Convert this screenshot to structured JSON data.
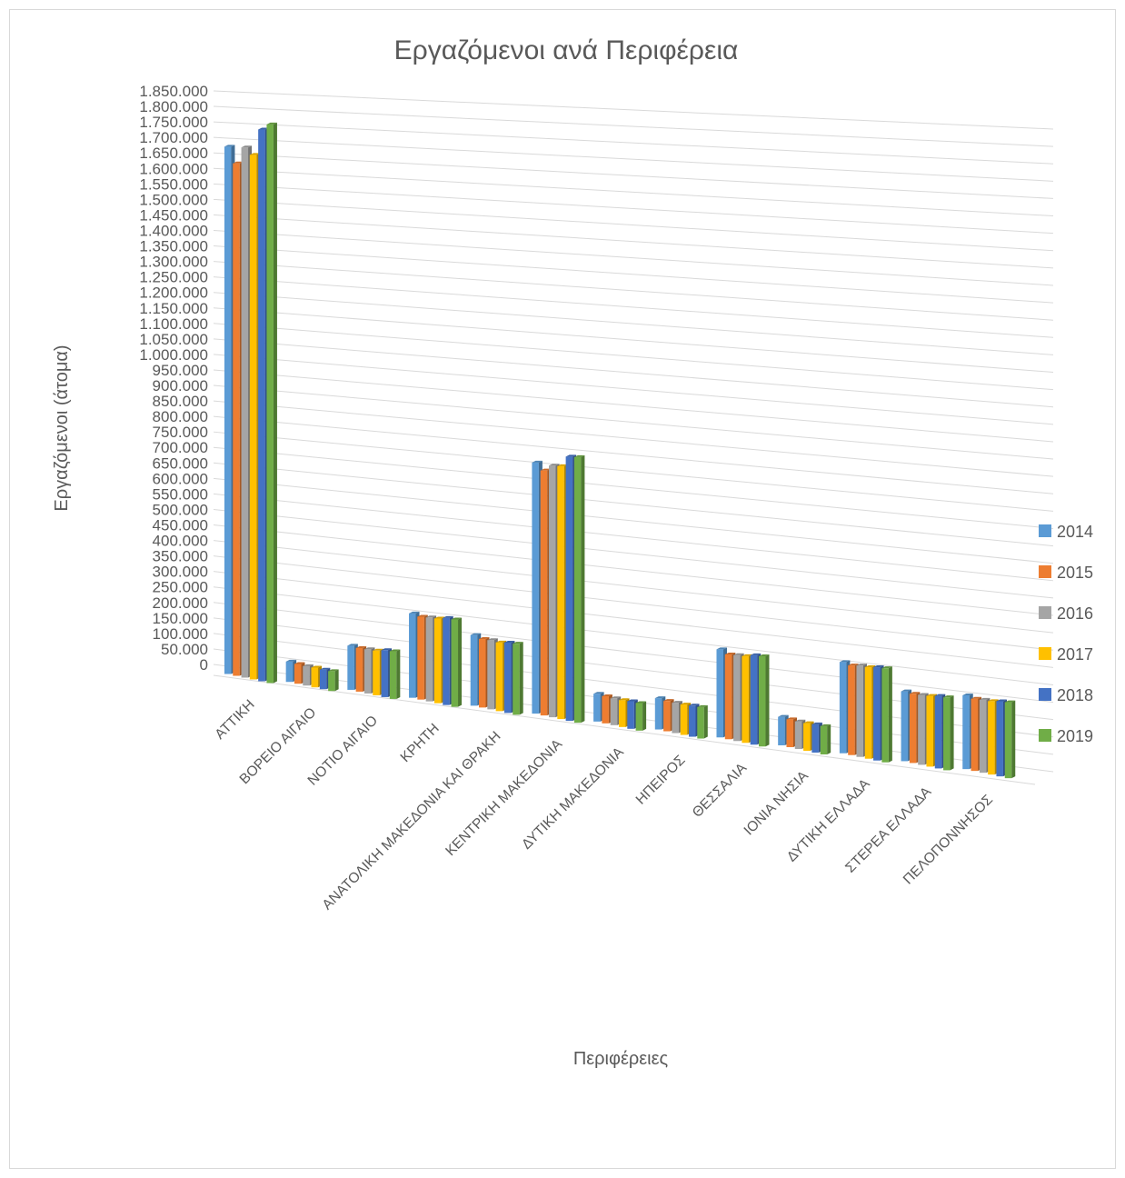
{
  "chart_data": {
    "type": "bar",
    "title": "Εργαζόμενοι ανά Περιφέρεια",
    "xlabel": "Περιφέρειες",
    "ylabel": "Εργαζόμενοι (άτομα)",
    "ylim": [
      0,
      1850000
    ],
    "ytick_step": 50000,
    "ytick_labels": [
      "0",
      "50.000",
      "100.000",
      "150.000",
      "200.000",
      "250.000",
      "300.000",
      "350.000",
      "400.000",
      "450.000",
      "500.000",
      "550.000",
      "600.000",
      "650.000",
      "700.000",
      "750.000",
      "800.000",
      "850.000",
      "900.000",
      "950.000",
      "1.000.000",
      "1.050.000",
      "1.100.000",
      "1.150.000",
      "1.200.000",
      "1.250.000",
      "1.300.000",
      "1.350.000",
      "1.400.000",
      "1.450.000",
      "1.500.000",
      "1.550.000",
      "1.600.000",
      "1.650.000",
      "1.700.000",
      "1.750.000",
      "1.800.000",
      "1.850.000"
    ],
    "grid": true,
    "legend": "right",
    "categories": [
      "ΑΤΤΙΚΗ",
      "ΒΟΡΕΙΟ ΑΙΓΑΙΟ",
      "ΝΟΤΙΟ ΑΙΓΑΙΟ",
      "ΚΡΗΤΗ",
      "ΑΝΑΤΟΛΙΚΗ ΜΑΚΕΔΟΝΙΑ ΚΑΙ ΘΡΑΚΗ",
      "ΚΕΝΤΡΙΚΗ ΜΑΚΕΔΟΝΙΑ",
      "ΔΥΤΙΚΗ ΜΑΚΕΔΟΝΙΑ",
      "ΗΠΕΙΡΟΣ",
      "ΘΕΣΣΑΛΙΑ",
      "ΙΟΝΙΑ ΝΗΣΙΑ",
      "ΔΥΤΙΚΗ ΕΛΛΑΔΑ",
      "ΣΤΕΡΕΑ ΕΛΛΑΔΑ",
      "ΠΕΛΟΠΟΝΝΗΣΟΣ"
    ],
    "series": [
      {
        "name": "2014",
        "color": "#5b9bd5",
        "values": [
          1700000,
          65000,
          140000,
          265000,
          220000,
          775000,
          85000,
          95000,
          265000,
          85000,
          270000,
          205000,
          215000
        ]
      },
      {
        "name": "2015",
        "color": "#ed7d31",
        "values": [
          1650000,
          63000,
          138000,
          260000,
          213000,
          755000,
          83000,
          92000,
          255000,
          83000,
          265000,
          203000,
          210000
        ]
      },
      {
        "name": "2016",
        "color": "#a5a5a5",
        "values": [
          1705000,
          62000,
          140000,
          263000,
          215000,
          775000,
          82000,
          92000,
          258000,
          82000,
          270000,
          205000,
          212000
        ]
      },
      {
        "name": "2017",
        "color": "#ffc000",
        "values": [
          1685000,
          63000,
          141000,
          265000,
          213000,
          778000,
          82000,
          92000,
          260000,
          82000,
          270000,
          207000,
          213000
        ]
      },
      {
        "name": "2018",
        "color": "#4472c4",
        "values": [
          1770000,
          62000,
          148000,
          272000,
          218000,
          812000,
          84000,
          94000,
          268000,
          84000,
          275000,
          212000,
          218000
        ]
      },
      {
        "name": "2019",
        "color": "#70ad47",
        "values": [
          1790000,
          63000,
          150000,
          273000,
          220000,
          815000,
          84000,
          95000,
          270000,
          84000,
          277000,
          213000,
          220000
        ]
      }
    ]
  }
}
